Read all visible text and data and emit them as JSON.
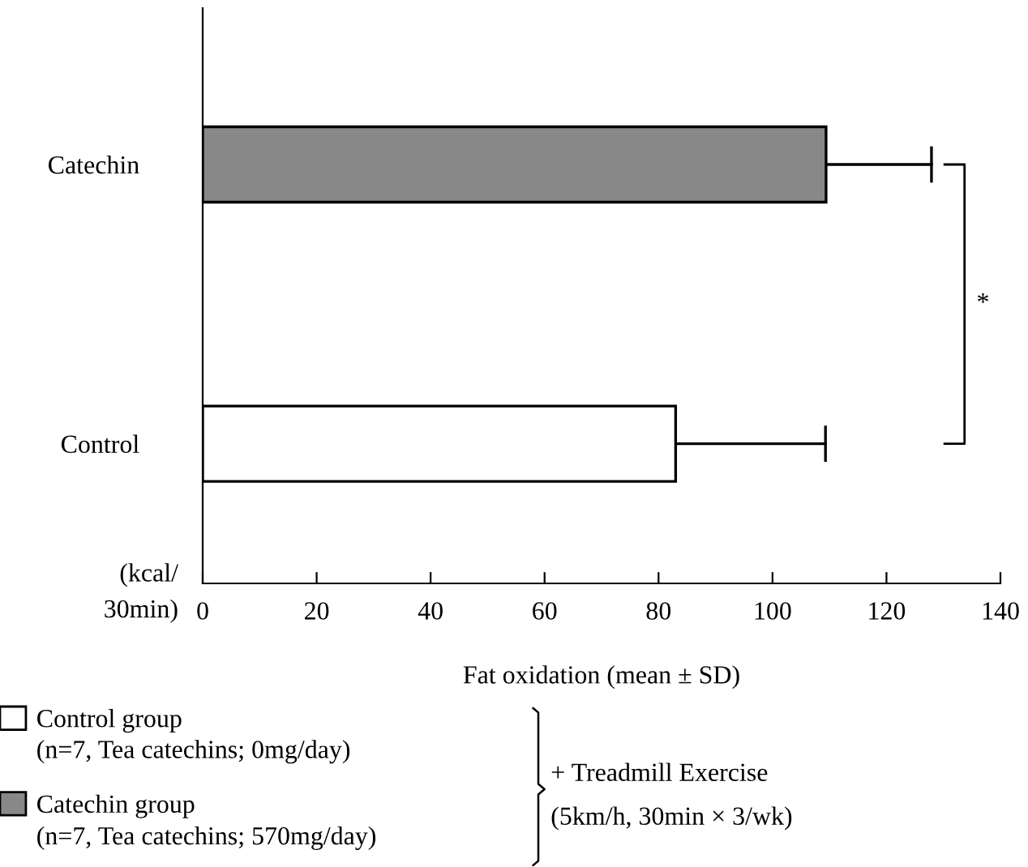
{
  "chart_data": {
    "type": "bar",
    "orientation": "horizontal",
    "categories": [
      "Catechin",
      "Control"
    ],
    "series": [
      {
        "name": "Control group",
        "color": "#ffffff",
        "values": [
          null,
          83.0
        ],
        "errors": [
          null,
          [
            83.0,
            109.3
          ]
        ]
      },
      {
        "name": "Catechin group",
        "color": "#888888",
        "values": [
          109.4,
          null
        ],
        "errors": [
          [
            109.4,
            127.9
          ],
          null
        ]
      }
    ],
    "xlabel": "Fat oxidation (mean ± SD)",
    "xlim": [
      0,
      140
    ],
    "xticks": [
      0,
      20,
      40,
      60,
      80,
      100,
      120,
      140
    ],
    "grid": false,
    "legend": "bottom left",
    "annotations": [
      "*",
      "(kcal/\n30min)",
      "(n=7, Tea catechins; 0mg/day)",
      "(n=7, Tea catechins; 570mg/day)",
      "+ Treadmill Exercise",
      "(5km/h, 30min × 3/wk)"
    ]
  }
}
